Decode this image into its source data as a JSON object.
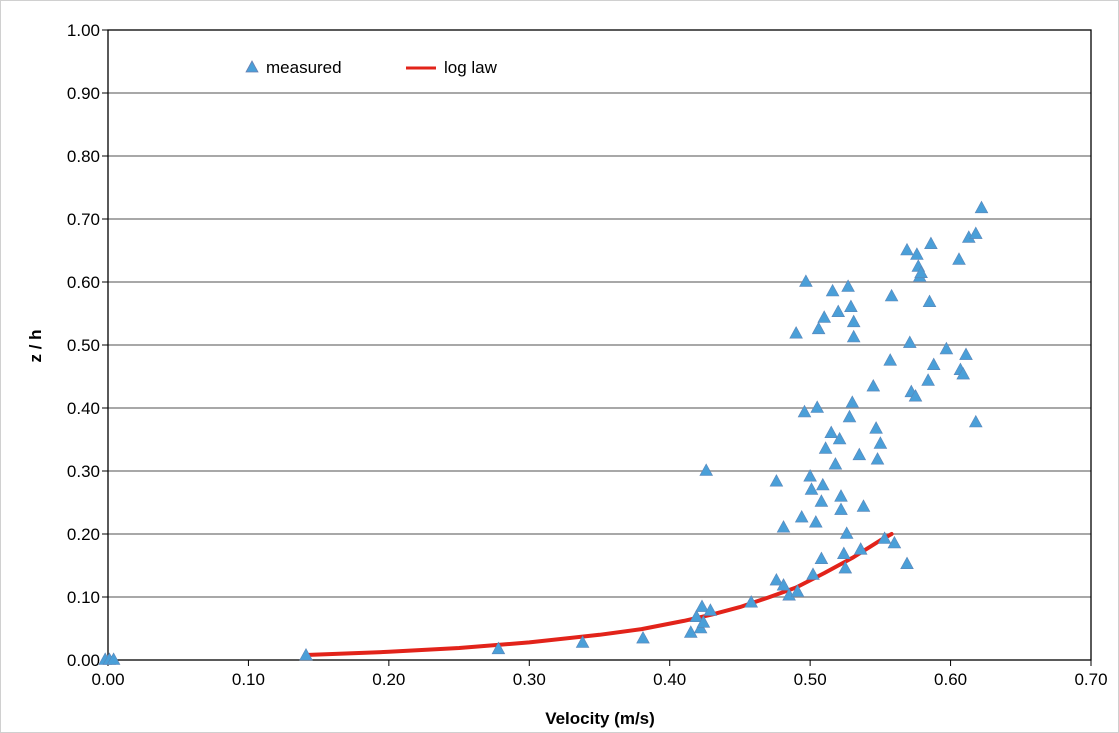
{
  "chart_data": {
    "type": "scatter",
    "xlabel": "Velocity (m/s)",
    "ylabel": "z / h",
    "xlim": [
      0,
      0.7
    ],
    "ylim": [
      0,
      1.0
    ],
    "x_ticks": [
      "0.00",
      "0.10",
      "0.20",
      "0.30",
      "0.40",
      "0.50",
      "0.60",
      "0.70"
    ],
    "y_ticks": [
      "0.00",
      "0.10",
      "0.20",
      "0.30",
      "0.40",
      "0.50",
      "0.60",
      "0.70",
      "0.80",
      "0.90",
      "1.00"
    ],
    "grid": "horizontal",
    "legend_position": "top-left",
    "legend": [
      {
        "label": "measured",
        "marker": "triangle"
      },
      {
        "label": "log law",
        "marker": "line"
      }
    ],
    "series": [
      {
        "name": "measured",
        "kind": "scatter",
        "marker": "triangle",
        "color": "#4a9fd8",
        "points": [
          [
            -0.002,
            0.0
          ],
          [
            0.001,
            0.0
          ],
          [
            0.004,
            0.0
          ],
          [
            0.141,
            0.007
          ],
          [
            0.278,
            0.017
          ],
          [
            0.338,
            0.027
          ],
          [
            0.381,
            0.034
          ],
          [
            0.415,
            0.043
          ],
          [
            0.419,
            0.068
          ],
          [
            0.422,
            0.05
          ],
          [
            0.424,
            0.059
          ],
          [
            0.423,
            0.084
          ],
          [
            0.429,
            0.078
          ],
          [
            0.426,
            0.3
          ],
          [
            0.458,
            0.091
          ],
          [
            0.476,
            0.126
          ],
          [
            0.476,
            0.283
          ],
          [
            0.481,
            0.21
          ],
          [
            0.481,
            0.118
          ],
          [
            0.485,
            0.102
          ],
          [
            0.49,
            0.518
          ],
          [
            0.491,
            0.108
          ],
          [
            0.494,
            0.226
          ],
          [
            0.496,
            0.393
          ],
          [
            0.497,
            0.6
          ],
          [
            0.5,
            0.291
          ],
          [
            0.501,
            0.27
          ],
          [
            0.502,
            0.135
          ],
          [
            0.504,
            0.218
          ],
          [
            0.505,
            0.4
          ],
          [
            0.506,
            0.525
          ],
          [
            0.508,
            0.251
          ],
          [
            0.508,
            0.16
          ],
          [
            0.509,
            0.277
          ],
          [
            0.51,
            0.543
          ],
          [
            0.511,
            0.335
          ],
          [
            0.515,
            0.36
          ],
          [
            0.516,
            0.585
          ],
          [
            0.518,
            0.31
          ],
          [
            0.52,
            0.552
          ],
          [
            0.521,
            0.35
          ],
          [
            0.522,
            0.259
          ],
          [
            0.522,
            0.238
          ],
          [
            0.524,
            0.168
          ],
          [
            0.525,
            0.145
          ],
          [
            0.526,
            0.2
          ],
          [
            0.527,
            0.592
          ],
          [
            0.528,
            0.385
          ],
          [
            0.529,
            0.56
          ],
          [
            0.53,
            0.408
          ],
          [
            0.531,
            0.512
          ],
          [
            0.531,
            0.536
          ],
          [
            0.535,
            0.325
          ],
          [
            0.536,
            0.175
          ],
          [
            0.538,
            0.243
          ],
          [
            0.545,
            0.434
          ],
          [
            0.547,
            0.367
          ],
          [
            0.548,
            0.318
          ],
          [
            0.55,
            0.343
          ],
          [
            0.553,
            0.192
          ],
          [
            0.557,
            0.475
          ],
          [
            0.558,
            0.577
          ],
          [
            0.56,
            0.185
          ],
          [
            0.569,
            0.152
          ],
          [
            0.569,
            0.65
          ],
          [
            0.571,
            0.503
          ],
          [
            0.572,
            0.425
          ],
          [
            0.575,
            0.418
          ],
          [
            0.576,
            0.643
          ],
          [
            0.577,
            0.624
          ],
          [
            0.578,
            0.608
          ],
          [
            0.579,
            0.614
          ],
          [
            0.584,
            0.443
          ],
          [
            0.585,
            0.568
          ],
          [
            0.586,
            0.66
          ],
          [
            0.588,
            0.468
          ],
          [
            0.597,
            0.493
          ],
          [
            0.606,
            0.635
          ],
          [
            0.607,
            0.46
          ],
          [
            0.609,
            0.453
          ],
          [
            0.611,
            0.484
          ],
          [
            0.613,
            0.67
          ],
          [
            0.618,
            0.676
          ],
          [
            0.618,
            0.377
          ],
          [
            0.622,
            0.717
          ]
        ]
      },
      {
        "name": "log law",
        "kind": "line",
        "color": "#e2231a",
        "points": [
          [
            0.141,
            0.008
          ],
          [
            0.2,
            0.013
          ],
          [
            0.25,
            0.019
          ],
          [
            0.3,
            0.028
          ],
          [
            0.35,
            0.04
          ],
          [
            0.38,
            0.049
          ],
          [
            0.41,
            0.062
          ],
          [
            0.43,
            0.072
          ],
          [
            0.45,
            0.084
          ],
          [
            0.47,
            0.099
          ],
          [
            0.49,
            0.115
          ],
          [
            0.51,
            0.138
          ],
          [
            0.53,
            0.162
          ],
          [
            0.55,
            0.19
          ],
          [
            0.558,
            0.2
          ]
        ]
      }
    ]
  }
}
